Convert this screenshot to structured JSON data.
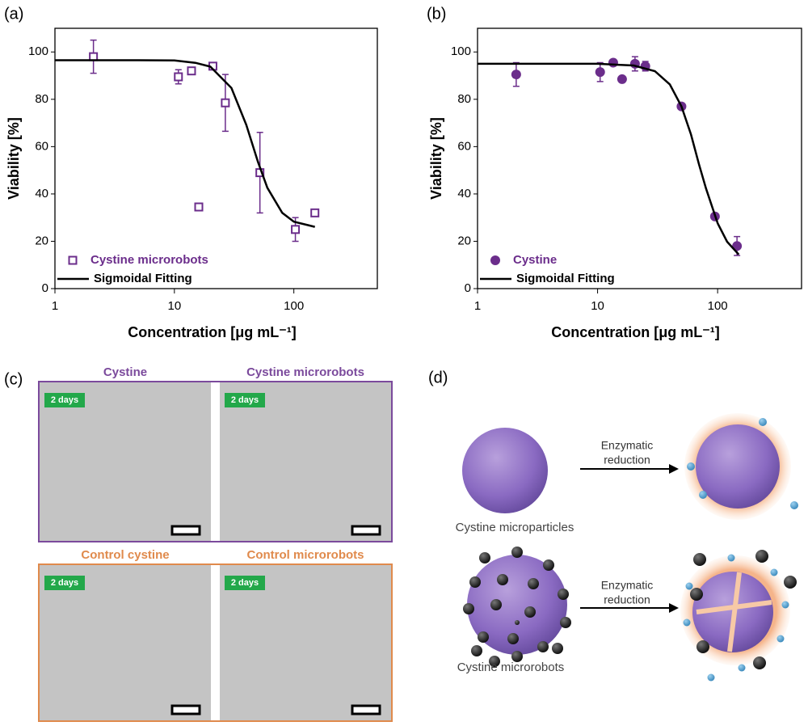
{
  "chart_data": [
    {
      "type": "scatter",
      "panel_label": "(a)",
      "xlabel": "Concentration [μg mL⁻¹]",
      "ylabel": "Viability [%]",
      "xscale": "log",
      "xlim": [
        1,
        500
      ],
      "ylim": [
        0,
        110
      ],
      "xticks": [
        1,
        10,
        100
      ],
      "yticks": [
        0,
        20,
        40,
        60,
        80,
        100
      ],
      "legend": "lower left",
      "series": [
        {
          "name": "Cystine microrobots",
          "style": "open-square",
          "color": "#6b2d8b",
          "x": [
            2.1,
            10.8,
            13.9,
            16,
            21,
            26.7,
            52,
            103,
            150
          ],
          "values": [
            98,
            89.5,
            92,
            34.5,
            94,
            78.5,
            49,
            25,
            32
          ],
          "errors": [
            7,
            3,
            1,
            1.5,
            1,
            12,
            17,
            5,
            1
          ]
        },
        {
          "name": "Sigmoidal Fitting",
          "style": "line",
          "color": "#000000",
          "x": [
            1,
            2,
            5,
            10,
            15,
            20,
            30,
            40,
            50,
            60,
            80,
            100,
            150
          ],
          "values": [
            96.5,
            96.5,
            96.5,
            96.4,
            95.4,
            93.8,
            84.8,
            69.2,
            53.6,
            42.6,
            32,
            28.3,
            26.1
          ]
        }
      ]
    },
    {
      "type": "scatter",
      "panel_label": "(b)",
      "xlabel": "Concentration [μg mL⁻¹]",
      "ylabel": "Viability [%]",
      "xscale": "log",
      "xlim": [
        1,
        500
      ],
      "ylim": [
        0,
        110
      ],
      "xticks": [
        1,
        10,
        100
      ],
      "yticks": [
        0,
        20,
        40,
        60,
        80,
        100
      ],
      "legend": "lower left",
      "series": [
        {
          "name": "Cystine",
          "style": "filled-circle",
          "color": "#6b2d8b",
          "x": [
            2.1,
            10.5,
            13.5,
            16,
            20.5,
            25,
            50,
            95,
            145
          ],
          "values": [
            90.5,
            91.5,
            95.5,
            88.5,
            95,
            94,
            77,
            30.5,
            18
          ],
          "errors": [
            5,
            4,
            1,
            1,
            3,
            2,
            1,
            1,
            4
          ]
        },
        {
          "name": "Sigmoidal Fitting",
          "style": "line",
          "color": "#000000",
          "x": [
            1,
            2,
            5,
            10,
            20,
            30,
            40,
            50,
            60,
            70,
            80,
            100,
            120,
            150
          ],
          "values": [
            95,
            95,
            95,
            95,
            94.3,
            91.9,
            86.3,
            77,
            65.1,
            52.5,
            42.3,
            27.6,
            19.8,
            14.4
          ]
        }
      ]
    }
  ],
  "panel_c": {
    "panel_label": "(c)",
    "badge": "2 days",
    "rows": [
      {
        "color": "#7b4a9c",
        "titles": [
          "Cystine",
          "Cystine microrobots"
        ]
      },
      {
        "color": "#e08a4c",
        "titles": [
          "Control cystine",
          "Control microrobots"
        ]
      }
    ]
  },
  "panel_d": {
    "panel_label": "(d)",
    "rows": [
      {
        "label": "Cystine microparticles",
        "arrow_text": [
          "Enzymatic",
          "reduction"
        ]
      },
      {
        "label": "Cystine microrobots",
        "arrow_text": [
          "Enzymatic",
          "reduction"
        ]
      }
    ]
  }
}
